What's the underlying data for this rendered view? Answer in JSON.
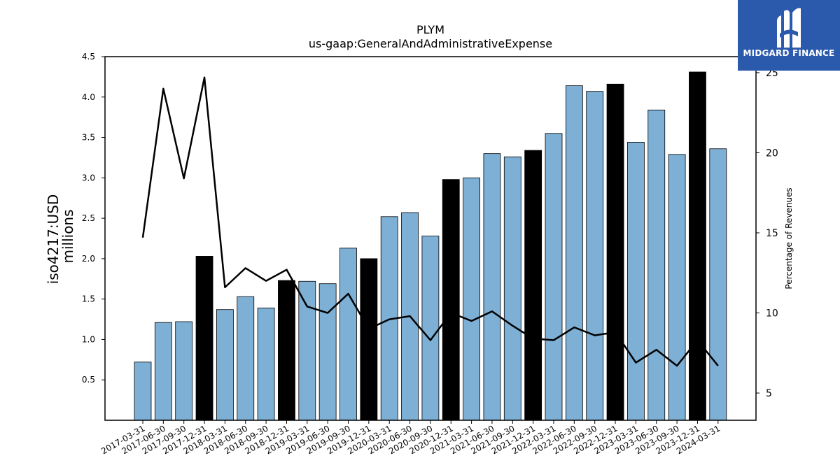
{
  "chart_data": {
    "type": "bar",
    "title": "PLYM",
    "subtitle": "us-gaap:GeneralAndAdministrativeExpense",
    "ylabel": "iso4217:USD",
    "ylabel_unit": "millions",
    "y2label": "Percentage of Revenues",
    "ylim": [
      0,
      4.5
    ],
    "y2lim": [
      3.3,
      26.0
    ],
    "yticks": [
      "0.5",
      "1.0",
      "1.5",
      "2.0",
      "2.5",
      "3.0",
      "3.5",
      "4.0",
      "4.5"
    ],
    "y2ticks": [
      "5",
      "10",
      "15",
      "20",
      "25"
    ],
    "categories": [
      "2017-03-31",
      "2017-06-30",
      "2017-09-30",
      "2017-12-31",
      "2018-03-31",
      "2018-06-30",
      "2018-09-30",
      "2018-12-31",
      "2019-03-31",
      "2019-06-30",
      "2019-09-30",
      "2019-12-31",
      "2020-03-31",
      "2020-06-30",
      "2020-09-30",
      "2020-12-31",
      "2021-03-31",
      "2021-06-30",
      "2021-09-30",
      "2021-12-31",
      "2022-03-31",
      "2022-06-30",
      "2022-09-30",
      "2022-12-31",
      "2023-03-31",
      "2023-06-30",
      "2023-09-30",
      "2023-12-31",
      "2024-03-31"
    ],
    "series": [
      {
        "kind": "bar",
        "values": [
          0.72,
          1.21,
          1.22,
          2.03,
          1.37,
          1.53,
          1.39,
          1.73,
          1.72,
          1.69,
          2.13,
          2.0,
          2.52,
          2.57,
          2.28,
          2.98,
          3.0,
          3.3,
          3.26,
          3.34,
          3.55,
          4.14,
          4.07,
          4.16,
          3.44,
          3.84,
          3.29,
          4.31,
          3.36
        ],
        "highlight": [
          false,
          false,
          false,
          true,
          false,
          false,
          false,
          true,
          false,
          false,
          false,
          true,
          false,
          false,
          false,
          true,
          false,
          false,
          false,
          true,
          false,
          false,
          false,
          true,
          false,
          false,
          false,
          true,
          false
        ]
      },
      {
        "kind": "line",
        "axis": "right",
        "values": [
          14.7,
          24.0,
          18.4,
          24.7,
          11.6,
          12.8,
          12.0,
          12.7,
          10.4,
          10.0,
          11.2,
          9.0,
          9.6,
          9.8,
          8.3,
          10.0,
          9.5,
          10.1,
          9.2,
          8.4,
          8.3,
          9.1,
          8.6,
          8.8,
          6.9,
          7.7,
          6.7,
          8.3,
          6.7
        ]
      }
    ],
    "colors": {
      "bar": "#7eb0d5",
      "highlight": "#000000",
      "line": "#000000"
    },
    "grid": false
  },
  "brand": {
    "name": "MIDGARD FINANCE",
    "icon": "midgard-logo-icon"
  }
}
